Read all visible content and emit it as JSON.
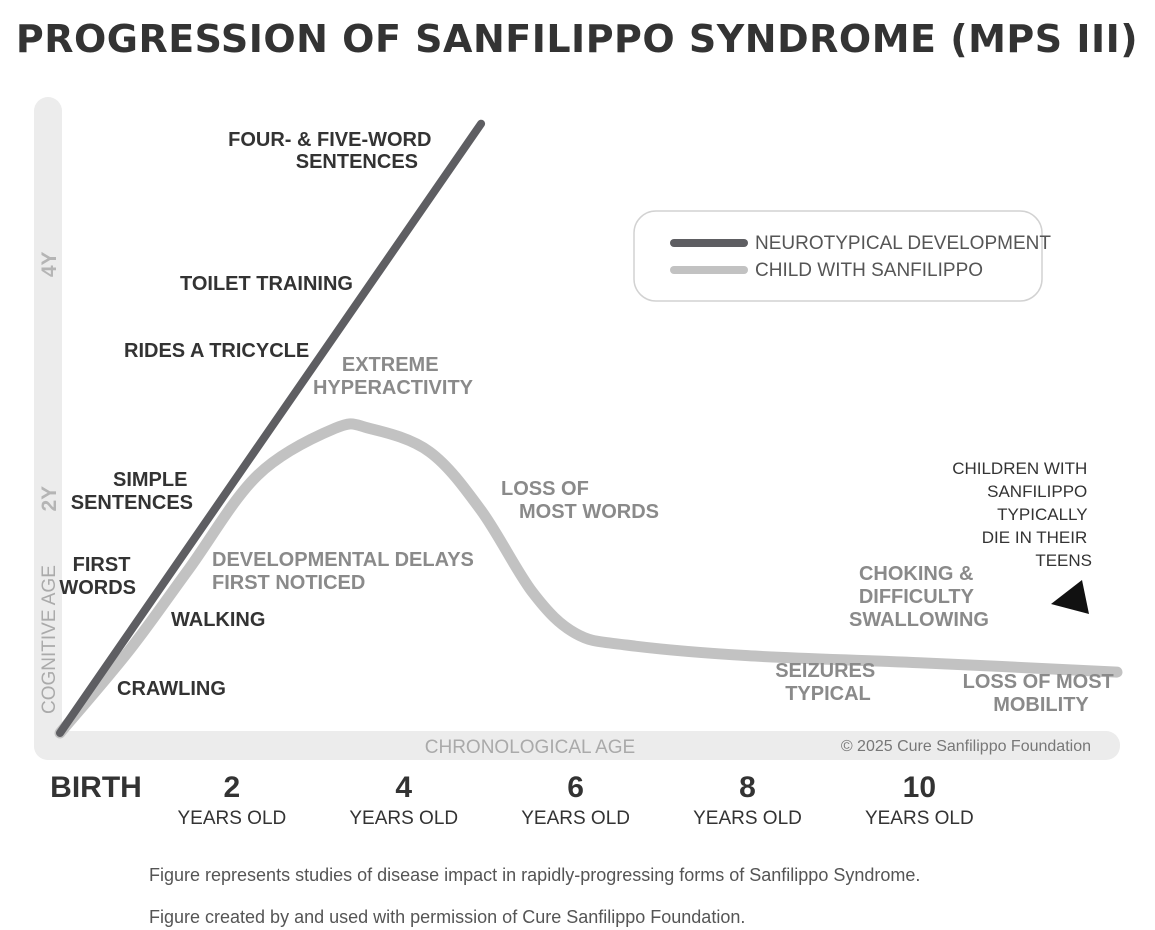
{
  "title": "PROGRESSION OF SANFILIPPO SYNDROME (MPS III)",
  "chart_data": {
    "type": "line",
    "xlabel": "CHRONOLOGICAL AGE",
    "ylabel": "COGNITIVE AGE",
    "x_ticks": [
      {
        "value": 0,
        "label": "BIRTH",
        "sub": ""
      },
      {
        "value": 2,
        "label": "2",
        "sub": "YEARS OLD"
      },
      {
        "value": 4,
        "label": "4",
        "sub": "YEARS OLD"
      },
      {
        "value": 6,
        "label": "6",
        "sub": "YEARS OLD"
      },
      {
        "value": 8,
        "label": "8",
        "sub": "YEARS OLD"
      },
      {
        "value": 10,
        "label": "10",
        "sub": "YEARS OLD"
      }
    ],
    "y_ticks": [
      {
        "value": 2,
        "label": "2Y"
      },
      {
        "value": 4,
        "label": "4Y"
      }
    ],
    "xlim": [
      0,
      12.3
    ],
    "ylim": [
      0,
      5.3
    ],
    "series": [
      {
        "name": "NEUROTYPICAL DEVELOPMENT",
        "color": "#5e5e62",
        "points": [
          [
            0,
            0
          ],
          [
            4.9,
            5.2
          ]
        ]
      },
      {
        "name": "CHILD WITH SANFILIPPO",
        "color": "#c2c2c2",
        "points": [
          [
            0,
            0
          ],
          [
            0.8,
            0.7
          ],
          [
            1.5,
            1.4
          ],
          [
            2.3,
            2.2
          ],
          [
            3.2,
            2.6
          ],
          [
            3.6,
            2.6
          ],
          [
            4.3,
            2.4
          ],
          [
            4.9,
            1.9
          ],
          [
            5.5,
            1.2
          ],
          [
            6.0,
            0.85
          ],
          [
            6.6,
            0.75
          ],
          [
            8.0,
            0.66
          ],
          [
            10.0,
            0.6
          ],
          [
            12.3,
            0.52
          ]
        ]
      }
    ],
    "annotations_dark": [
      {
        "lines": [
          "FOUR- & FIVE-WORD",
          "SENTENCES"
        ],
        "anchor": "end"
      },
      {
        "lines": [
          "TOILET TRAINING"
        ],
        "anchor": "start"
      },
      {
        "lines": [
          "RIDES A TRICYCLE"
        ],
        "anchor": "start"
      },
      {
        "lines": [
          "SIMPLE",
          "SENTENCES"
        ],
        "anchor": "end"
      },
      {
        "lines": [
          "FIRST",
          "WORDS"
        ],
        "anchor": "end"
      },
      {
        "lines": [
          "WALKING"
        ],
        "anchor": "start"
      },
      {
        "lines": [
          "CRAWLING"
        ],
        "anchor": "start"
      }
    ],
    "annotations_gray": [
      {
        "lines": [
          "EXTREME",
          "HYPERACTIVITY"
        ],
        "anchor": "middle"
      },
      {
        "lines": [
          "DEVELOPMENTAL DELAYS",
          "FIRST NOTICED"
        ],
        "anchor": "start"
      },
      {
        "lines": [
          "LOSS OF",
          "MOST WORDS"
        ],
        "anchor": "start"
      },
      {
        "lines": [
          "CHOKING &",
          "DIFFICULTY",
          "SWALLOWING"
        ],
        "anchor": "middle"
      },
      {
        "lines": [
          "SEIZURES",
          "TYPICAL"
        ],
        "anchor": "middle"
      },
      {
        "lines": [
          "LOSS OF MOST",
          "MOBILITY"
        ],
        "anchor": "middle"
      }
    ],
    "note": [
      "CHILDREN WITH",
      "SANFILIPPO",
      "TYPICALLY",
      "DIE IN THEIR",
      "TEENS"
    ],
    "legend_position": "top-right",
    "copyright": "© 2025 Cure Sanfilippo Foundation"
  },
  "footnotes": [
    "Figure represents studies of disease impact in rapidly-progressing forms of Sanfilippo Syndrome.",
    "Figure created by and used with permission of Cure Sanfilippo Foundation."
  ]
}
